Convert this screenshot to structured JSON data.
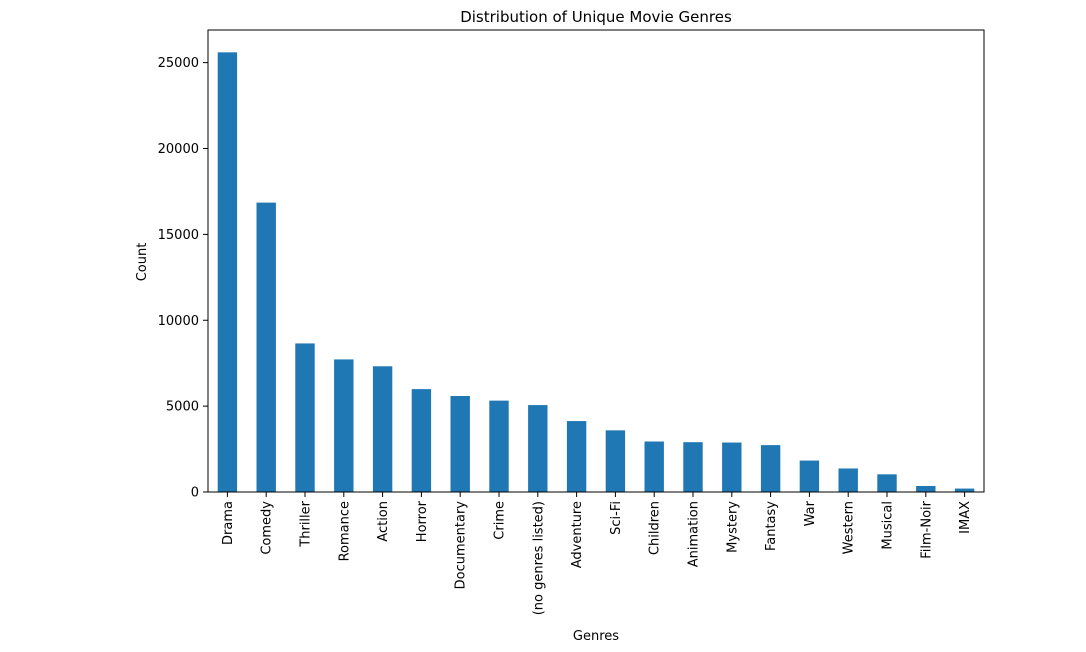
{
  "chart_data": {
    "type": "bar",
    "title": "Distribution of Unique Movie Genres",
    "xlabel": "Genres",
    "ylabel": "Count",
    "categories": [
      "Drama",
      "Comedy",
      "Thriller",
      "Romance",
      "Action",
      "Horror",
      "Documentary",
      "Crime",
      "(no genres listed)",
      "Adventure",
      "Sci-Fi",
      "Children",
      "Animation",
      "Mystery",
      "Fantasy",
      "War",
      "Western",
      "Musical",
      "Film-Noir",
      "IMAX"
    ],
    "values": [
      25600,
      16850,
      8650,
      7720,
      7320,
      5990,
      5590,
      5320,
      5060,
      4130,
      3590,
      2940,
      2900,
      2880,
      2730,
      1830,
      1370,
      1030,
      350,
      200
    ],
    "ylim": [
      0,
      26900
    ],
    "yticks": [
      0,
      5000,
      10000,
      15000,
      20000,
      25000
    ],
    "bar_color": "#1f77b4",
    "grid": false,
    "legend": false
  }
}
